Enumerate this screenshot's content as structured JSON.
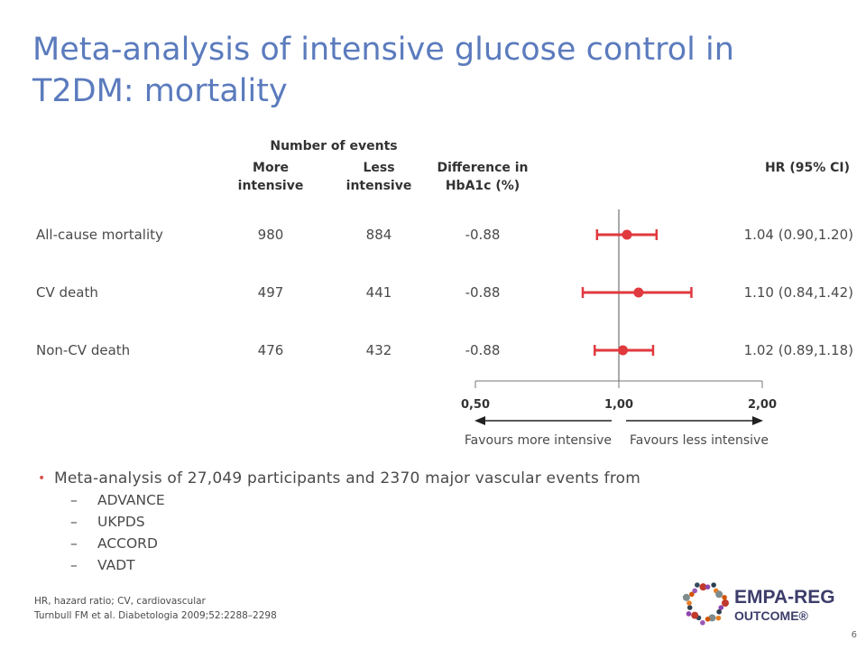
{
  "title": "Meta-analysis of intensive glucose control in T2DM: mortality",
  "table": {
    "header_group": "Number of events",
    "col_more": [
      "More",
      "intensive"
    ],
    "col_less": [
      "Less",
      "intensive"
    ],
    "col_diff": [
      "Difference in",
      "HbA1c (%)"
    ],
    "col_hr": "HR (95% CI)"
  },
  "chart_data": {
    "type": "forest",
    "x_scale": "log",
    "reference_line": 1.0,
    "x_ticks": [
      "0,50",
      "1,00",
      "2,00"
    ],
    "x_tick_values": [
      0.5,
      1.0,
      2.0
    ],
    "color": "#e0393e",
    "left_arrow_label": "Favours more intensive",
    "right_arrow_label": "Favours less intensive",
    "rows": [
      {
        "label": "All-cause mortality",
        "more_intensive": "980",
        "less_intensive": "884",
        "hba1c_diff": "-0.88",
        "hr": 1.04,
        "lo": 0.9,
        "hi": 1.2,
        "hr_text": "1.04 (0.90,1.20)"
      },
      {
        "label": "CV death",
        "more_intensive": "497",
        "less_intensive": "441",
        "hba1c_diff": "-0.88",
        "hr": 1.1,
        "lo": 0.84,
        "hi": 1.42,
        "hr_text": "1.10 (0.84,1.42)"
      },
      {
        "label": "Non-CV death",
        "more_intensive": "476",
        "less_intensive": "432",
        "hba1c_diff": "-0.88",
        "hr": 1.02,
        "lo": 0.89,
        "hi": 1.18,
        "hr_text": "1.02 (0.89,1.18)"
      }
    ]
  },
  "bullets": {
    "main": "Meta-analysis of 27,049 participants and 2370 major vascular events from",
    "sub": [
      "ADVANCE",
      "UKPDS",
      "ACCORD",
      "VADT"
    ]
  },
  "footnotes": {
    "abbrev": "HR, hazard ratio; CV, cardiovascular",
    "ref": "Turnbull FM et al. Diabetologia 2009;52:2288–2298"
  },
  "logo": {
    "line1": "EMPA-REG",
    "line2": "OUTCOME®"
  },
  "page_number": "6",
  "colors": {
    "title": "#5b7bbd",
    "accent": "#e0393e"
  }
}
